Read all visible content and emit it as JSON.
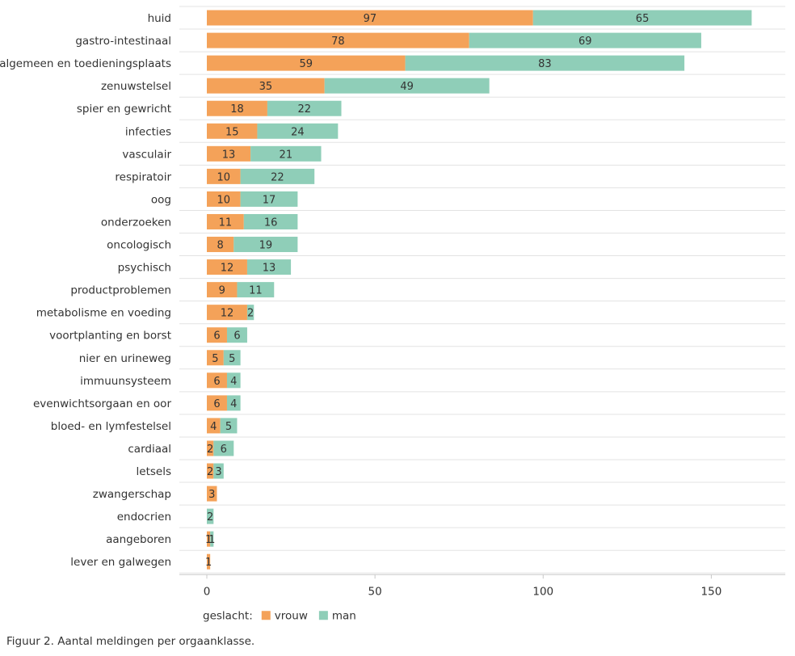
{
  "chart_data": {
    "type": "bar",
    "orientation": "horizontal",
    "stacked": true,
    "categories": [
      "huid",
      "gastro-intestinaal",
      "algemeen en toedieningsplaats",
      "zenuwstelsel",
      "spier en gewricht",
      "infecties",
      "vasculair",
      "respiratoir",
      "oog",
      "onderzoeken",
      "oncologisch",
      "psychisch",
      "productproblemen",
      "metabolisme en voeding",
      "voortplanting en borst",
      "nier en urineweg",
      "immuunsysteem",
      "evenwichtsorgaan en oor",
      "bloed- en lymfestelsel",
      "cardiaal",
      "letsels",
      "zwangerschap",
      "endocrien",
      "aangeboren",
      "lever en galwegen"
    ],
    "series": [
      {
        "name": "vrouw",
        "color": "#f4a259",
        "values": [
          97,
          78,
          59,
          35,
          18,
          15,
          13,
          10,
          10,
          11,
          8,
          12,
          9,
          12,
          6,
          5,
          6,
          6,
          4,
          2,
          2,
          3,
          null,
          1,
          1
        ]
      },
      {
        "name": "man",
        "color": "#8fceb8",
        "values": [
          65,
          69,
          83,
          49,
          22,
          24,
          21,
          22,
          17,
          16,
          19,
          13,
          11,
          2,
          6,
          5,
          4,
          4,
          5,
          6,
          3,
          null,
          2,
          1,
          null
        ]
      }
    ],
    "xlim": [
      0,
      172
    ],
    "xticks": [
      0,
      50,
      100,
      150
    ],
    "grid": true,
    "legend": {
      "title": "geslacht:",
      "placement": "bottom-left"
    }
  },
  "caption": "Figuur 2. Aantal meldingen per orgaanklasse."
}
